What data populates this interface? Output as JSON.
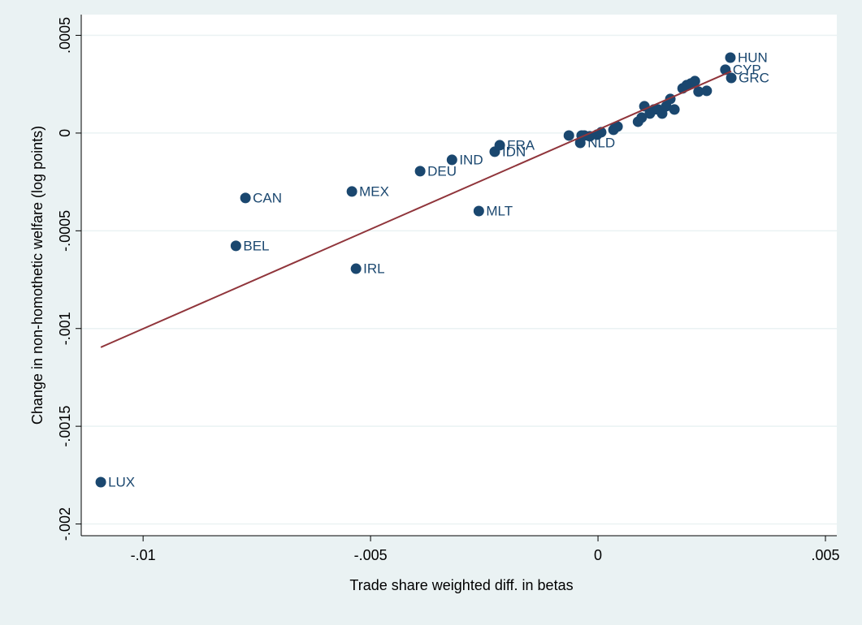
{
  "chart_data": {
    "type": "scatter",
    "xlabel": "Trade share weighted diff. in betas",
    "ylabel": "Change in non-homothetic welfare (log points)",
    "xlim": [
      -0.01136,
      0.00525
    ],
    "ylim": [
      -0.00206,
      0.000606
    ],
    "xticks": [
      {
        "value": -0.01,
        "label": "-.01"
      },
      {
        "value": -0.005,
        "label": "-.005"
      },
      0,
      {
        "value": 0.005,
        "label": ".005"
      }
    ],
    "yticks": [
      {
        "value": -0.002,
        "label": "-.002"
      },
      {
        "value": -0.0015,
        "label": "-.0015"
      },
      {
        "value": -0.001,
        "label": "-.001"
      },
      {
        "value": -0.0005,
        "label": "-.0005"
      },
      0,
      {
        "value": 0.0005,
        "label": ".0005"
      }
    ],
    "grid": true,
    "color": "#1a476f",
    "x": [
      -0.01093,
      -0.00796,
      -0.00775,
      -0.00541,
      -0.00532,
      -0.00391,
      -0.00321,
      -0.00227,
      -0.00216,
      -0.00262,
      -0.00039,
      0.00291,
      0.0028,
      0.00293,
      -0.00064,
      -0.00036,
      -0.0003,
      -0.00018,
      -2e-05,
      7e-05,
      0.00034,
      0.00038,
      0.00043,
      0.00088,
      0.00096,
      0.00102,
      0.00114,
      0.00123,
      0.00132,
      0.00141,
      0.0015,
      0.00159,
      0.00168,
      0.00186,
      0.00195,
      0.00204,
      0.00213,
      0.00221,
      0.00239
    ],
    "y": [
      -0.001786,
      -0.000577,
      -0.000332,
      -0.000299,
      -0.000694,
      -0.000195,
      -0.000137,
      -9.55e-05,
      -6.23e-05,
      -0.000399,
      -5e-05,
      0.000386,
      0.000324,
      0.000282,
      -1.25e-05,
      -1.25e-05,
      -1.25e-05,
      -1.66e-05,
      -8.3e-06,
      4.2e-06,
      1.66e-05,
      2.91e-05,
      3.32e-05,
      5.81e-05,
      7.89e-05,
      0.0001371,
      9.97e-05,
      0.0001205,
      0.0001204,
      9.97e-05,
      0.0001371,
      0.0001745,
      0.0001204,
      0.0002284,
      0.000245,
      0.0002533,
      0.0002658,
      0.0002118,
      0.000216
    ],
    "labels": [
      "LUX",
      "BEL",
      "CAN",
      "MEX",
      "IRL",
      "DEU",
      "IND",
      "IDN",
      "FRA",
      "MLT",
      "NLD",
      "HUN",
      "CYP",
      "GRC",
      null,
      null,
      null,
      null,
      null,
      null,
      null,
      null,
      null,
      null,
      null,
      null,
      null,
      null,
      null,
      null,
      null,
      null,
      null,
      null,
      null,
      null,
      null,
      null,
      null
    ],
    "fit_line": {
      "x": [
        -0.01093,
        0.00293
      ],
      "y": [
        -0.001096,
        0.000316
      ],
      "color": "#90353b"
    }
  }
}
